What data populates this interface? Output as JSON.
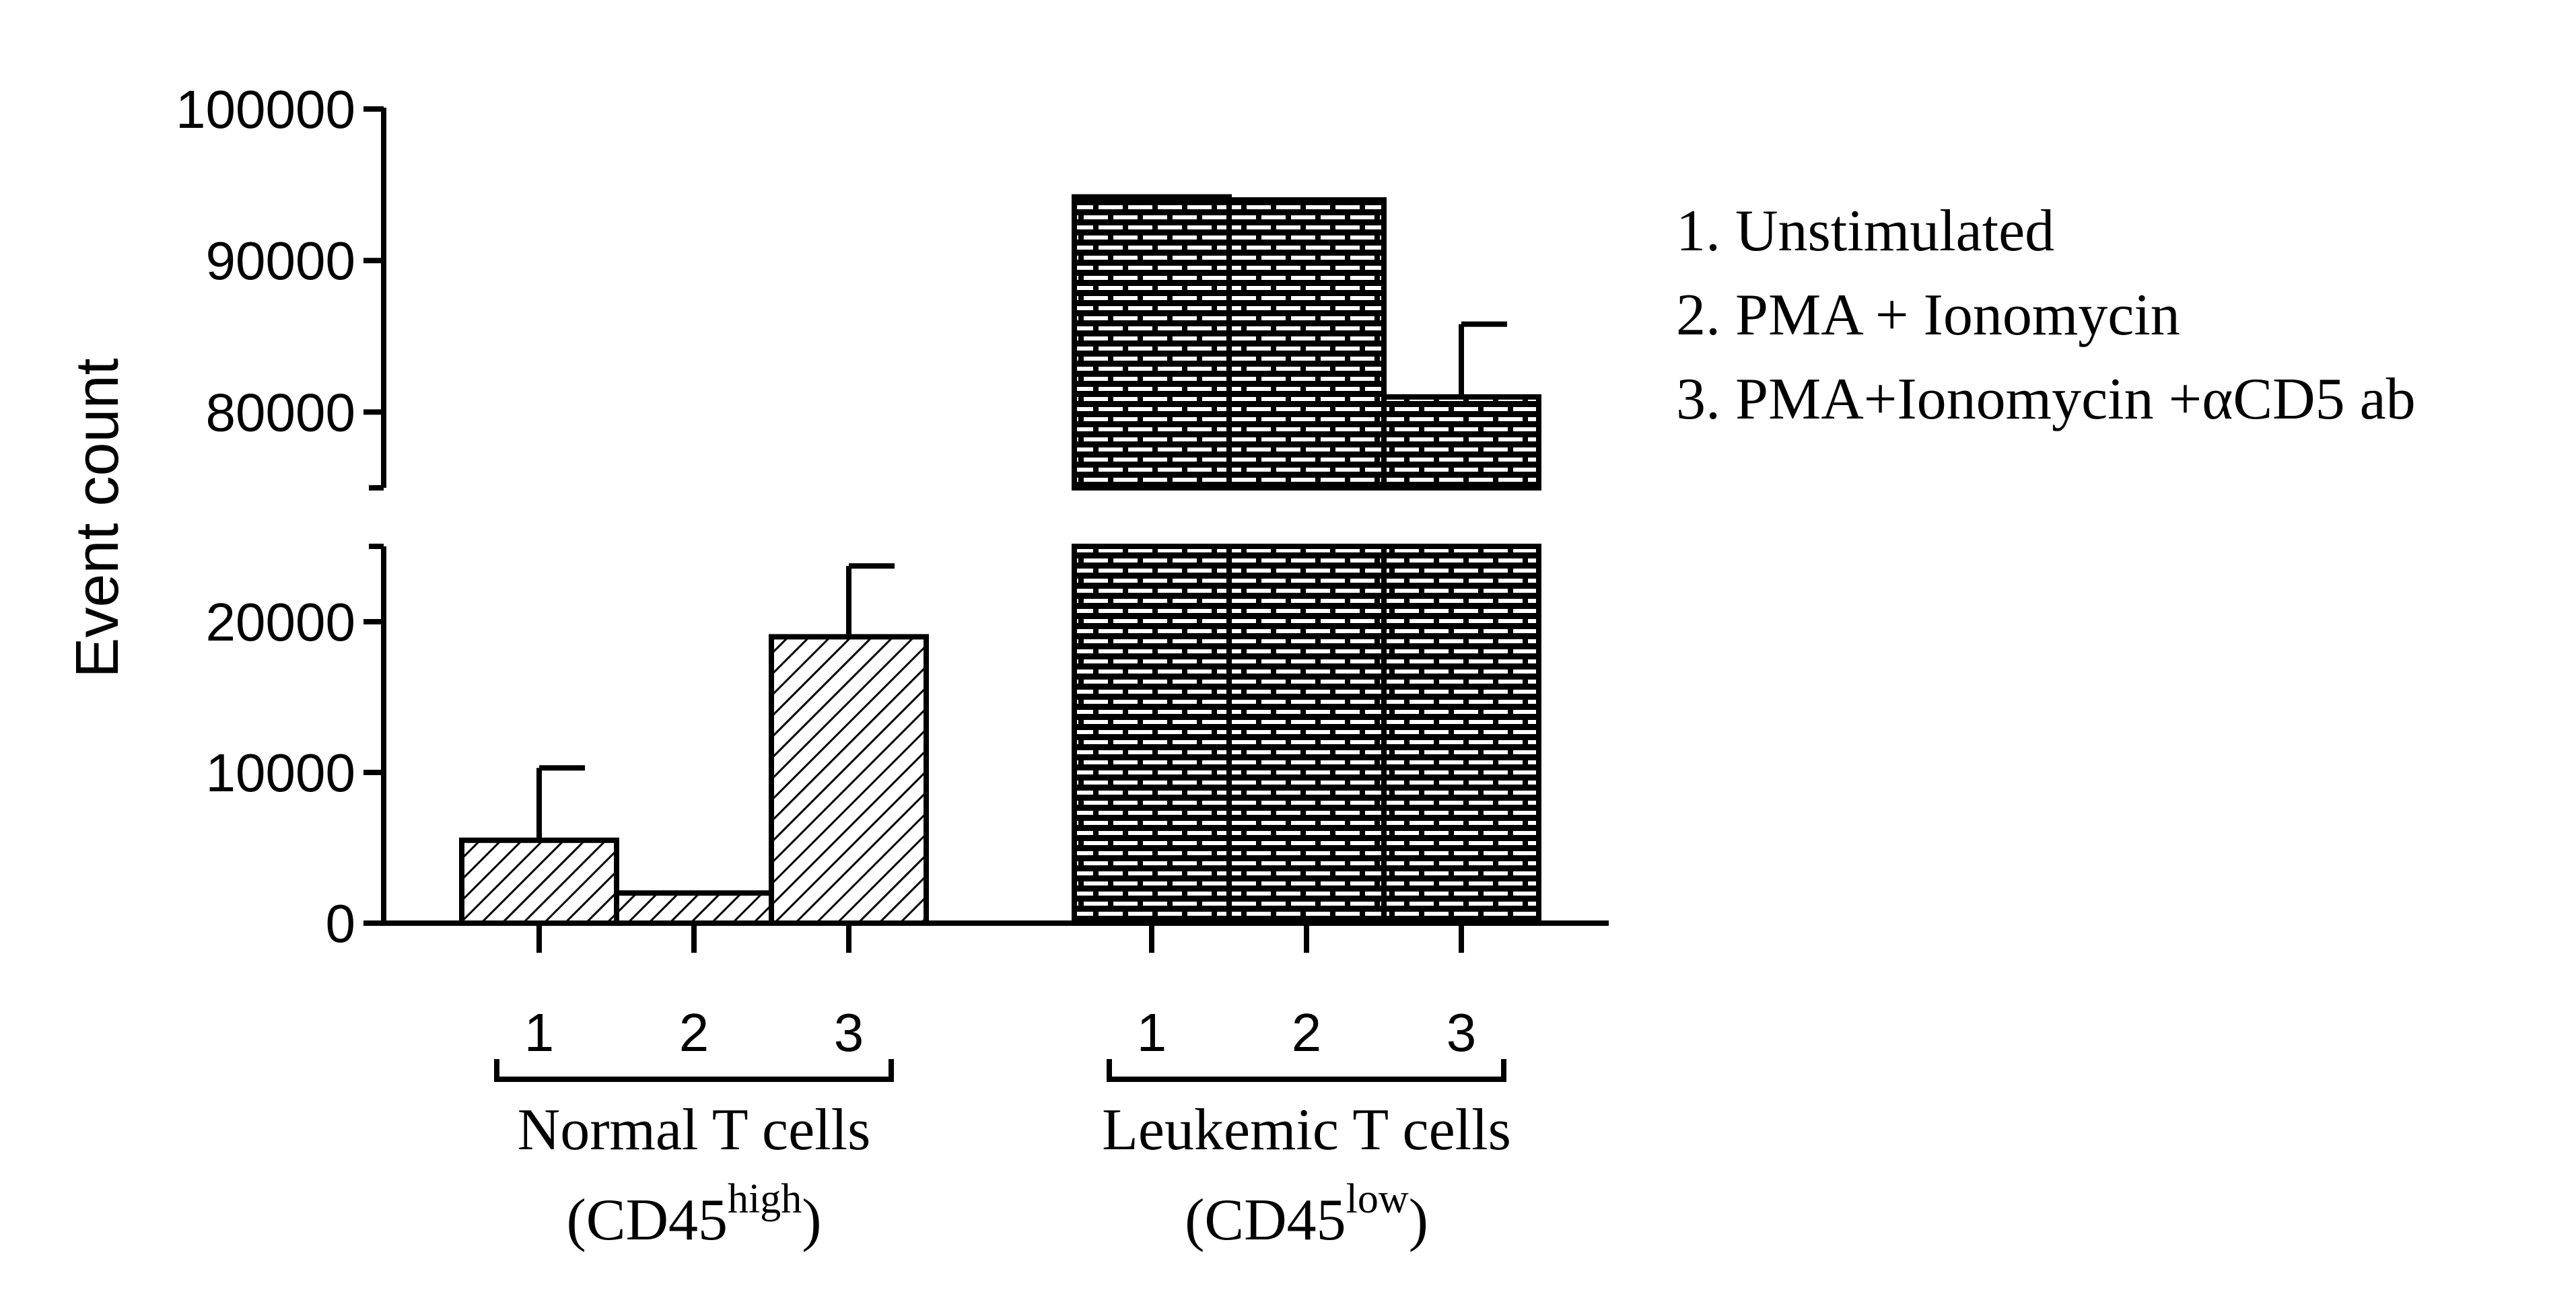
{
  "chart_data": {
    "type": "bar",
    "ylabel": "Event count",
    "y_axis_break": [
      25000,
      75000
    ],
    "ylim": [
      0,
      100000
    ],
    "y_ticks": [
      "0",
      "10000",
      "20000",
      "80000",
      "90000",
      "100000"
    ],
    "legend_position": "top-right",
    "legend": [
      "1. Unstimulated",
      "2. PMA + Ionomycin",
      "3. PMA+Ionomycin +αCD5 ab"
    ],
    "groups": [
      {
        "label": "Normal T cells",
        "sublabel_base": "(CD45",
        "sublabel_sup": "high",
        "sublabel_end": ")",
        "categories": [
          "1",
          "2",
          "3"
        ],
        "values": [
          5500,
          2000,
          19000
        ],
        "error_plus": [
          4800,
          0,
          4700
        ],
        "pattern": "diagonal-hatch"
      },
      {
        "label": "Leukemic T cells",
        "sublabel_base": "(CD45",
        "sublabel_sup": "low",
        "sublabel_end": ")",
        "categories": [
          "1",
          "2",
          "3"
        ],
        "values": [
          94200,
          94000,
          81000
        ],
        "error_plus": [
          0,
          0,
          4800
        ],
        "pattern": "brick"
      }
    ]
  }
}
